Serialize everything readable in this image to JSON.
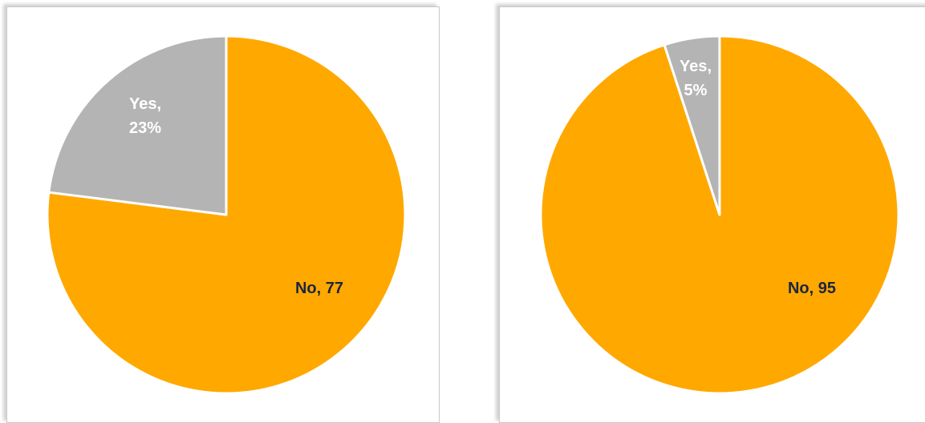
{
  "chart_data": [
    {
      "type": "pie",
      "categories": [
        "No",
        "Yes"
      ],
      "values": [
        77,
        23
      ],
      "value_labels": [
        "No, 77",
        "Yes, 23%"
      ],
      "colors": [
        "#ffa800",
        "#b4b4b4"
      ]
    },
    {
      "type": "pie",
      "categories": [
        "No",
        "Yes"
      ],
      "values": [
        95,
        5
      ],
      "value_labels": [
        "No, 95",
        "Yes, 5%"
      ],
      "colors": [
        "#ffa800",
        "#b4b4b4"
      ]
    }
  ]
}
